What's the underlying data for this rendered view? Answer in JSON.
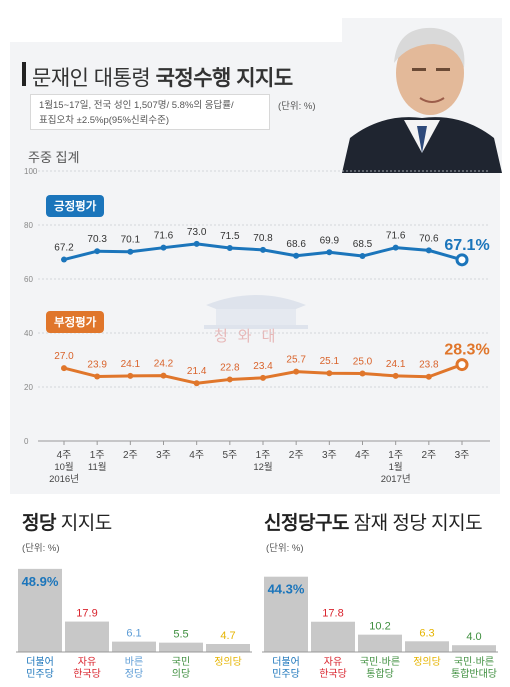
{
  "header": {
    "title_regular": "문재인 대통령 ",
    "title_bold": "국정수행 지지도",
    "info_line1": "1월15~17일, 전국 성인 1,507명/ 5.8%의 응답률/",
    "info_line2": "표집오차 ±2.5%p(95%신뢰수준)",
    "unit": "(단위: %)",
    "weekly_label": "주중 집계"
  },
  "watermark_text": "청와대",
  "chart_data": [
    {
      "type": "line",
      "x_labels": [
        "4주",
        "1주",
        "2주",
        "3주",
        "4주",
        "5주",
        "1주",
        "2주",
        "3주",
        "4주",
        "1주",
        "2주",
        "3주"
      ],
      "x_sublabels": [
        "10월",
        "11월",
        "",
        "",
        "",
        "",
        "12월",
        "",
        "",
        "",
        "1월",
        "",
        ""
      ],
      "x_years": [
        "2016년",
        "",
        "",
        "",
        "",
        "",
        "",
        "",
        "",
        "",
        "2017년",
        "",
        ""
      ],
      "yticks": [
        0,
        20,
        40,
        60,
        80,
        100
      ],
      "ylim": [
        0,
        100
      ],
      "series": [
        {
          "name": "긍정평가",
          "color": "#1b75bb",
          "values": [
            67.2,
            70.3,
            70.1,
            71.6,
            73.0,
            71.5,
            70.8,
            68.6,
            69.9,
            68.5,
            71.6,
            70.6,
            67.1
          ],
          "labels": [
            "67.2",
            "70.3",
            "70.1",
            "71.6",
            "73.0",
            "71.5",
            "70.8",
            "68.6",
            "69.9",
            "68.5",
            "71.6",
            "70.6",
            "67.1%"
          ]
        },
        {
          "name": "부정평가",
          "color": "#e0762b",
          "values": [
            27.0,
            23.9,
            24.1,
            24.2,
            21.4,
            22.8,
            23.4,
            25.7,
            25.1,
            25.0,
            24.1,
            23.8,
            28.3
          ],
          "labels": [
            "27.0",
            "23.9",
            "24.1",
            "24.2",
            "21.4",
            "22.8",
            "23.4",
            "25.7",
            "25.1",
            "25.0",
            "24.1",
            "23.8",
            "28.3%"
          ]
        }
      ],
      "grid": true
    },
    {
      "type": "bar",
      "title_bold": "정당",
      "title_regular": " 지지도",
      "unit": "(단위: %)",
      "categories": [
        "더불어\n민주당",
        "자유\n한국당",
        "바른\n정당",
        "국민\n의당",
        "정의당"
      ],
      "values": [
        48.9,
        17.9,
        6.1,
        5.5,
        4.7
      ],
      "value_labels": [
        "48.9%",
        "17.9",
        "6.1",
        "5.5",
        "4.7"
      ],
      "label_colors": [
        "#1b75bb",
        "#d9232d",
        "#5b9bd5",
        "#3f8f3f",
        "#e6b400"
      ]
    },
    {
      "type": "bar",
      "title_bold": "신정당구도",
      "title_regular": " 잠재 정당 지지도",
      "unit": "(단위: %)",
      "categories": [
        "더불어\n민주당",
        "자유\n한국당",
        "국민·바른\n통합당",
        "정의당",
        "국민·바른\n통합반대당"
      ],
      "values": [
        44.3,
        17.8,
        10.2,
        6.3,
        4.0
      ],
      "value_labels": [
        "44.3%",
        "17.8",
        "10.2",
        "6.3",
        "4.0"
      ],
      "label_colors": [
        "#1b75bb",
        "#d9232d",
        "#3f8f3f",
        "#e6b400",
        "#3f8f3f"
      ]
    }
  ]
}
